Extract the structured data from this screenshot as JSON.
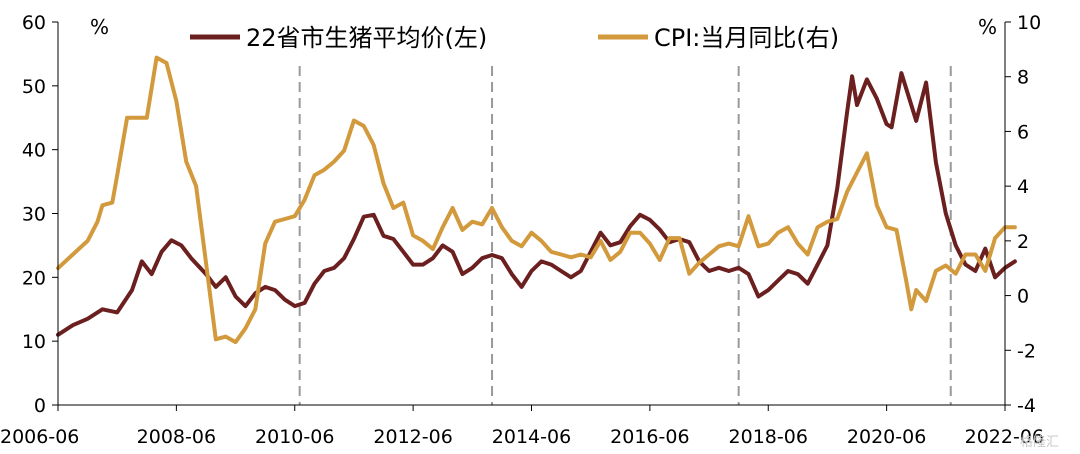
{
  "chart_data": {
    "type": "line",
    "x_labels": [
      "2006-06",
      "2008-06",
      "2010-06",
      "2012-06",
      "2014-06",
      "2016-06",
      "2018-06",
      "2020-06",
      "2022-06"
    ],
    "left_axis": {
      "unit": "%",
      "range": [
        0,
        60
      ],
      "ticks": [
        0,
        10,
        20,
        30,
        40,
        50,
        60
      ]
    },
    "right_axis": {
      "unit": "%",
      "range": [
        -4,
        10
      ],
      "ticks": [
        -4,
        -2,
        0,
        2,
        4,
        6,
        8,
        10
      ]
    },
    "vertical_markers": [
      "2010-07",
      "2013-10",
      "2017-12",
      "2021-07"
    ],
    "legend_placement": "top-center",
    "grid": false,
    "series": [
      {
        "name": "22省市生猪平均价(左)",
        "axis": "left",
        "color": "#6b1f1f",
        "points": [
          [
            "2006-06",
            11.0
          ],
          [
            "2006-09",
            12.5
          ],
          [
            "2006-12",
            13.5
          ],
          [
            "2007-03",
            15.0
          ],
          [
            "2007-06",
            14.5
          ],
          [
            "2007-09",
            18.0
          ],
          [
            "2007-11",
            22.5
          ],
          [
            "2008-01",
            20.5
          ],
          [
            "2008-03",
            24.0
          ],
          [
            "2008-05",
            25.8
          ],
          [
            "2008-07",
            25.0
          ],
          [
            "2008-09",
            23.0
          ],
          [
            "2008-12",
            20.5
          ],
          [
            "2009-02",
            18.5
          ],
          [
            "2009-04",
            20.0
          ],
          [
            "2009-06",
            17.0
          ],
          [
            "2009-08",
            15.5
          ],
          [
            "2009-10",
            17.5
          ],
          [
            "2009-12",
            18.5
          ],
          [
            "2010-02",
            18.0
          ],
          [
            "2010-04",
            16.5
          ],
          [
            "2010-06",
            15.5
          ],
          [
            "2010-08",
            16.0
          ],
          [
            "2010-10",
            19.0
          ],
          [
            "2010-12",
            21.0
          ],
          [
            "2011-02",
            21.5
          ],
          [
            "2011-04",
            23.0
          ],
          [
            "2011-06",
            26.0
          ],
          [
            "2011-08",
            29.5
          ],
          [
            "2011-10",
            29.8
          ],
          [
            "2011-12",
            26.5
          ],
          [
            "2012-02",
            26.0
          ],
          [
            "2012-04",
            24.0
          ],
          [
            "2012-06",
            22.0
          ],
          [
            "2012-08",
            22.0
          ],
          [
            "2012-10",
            23.0
          ],
          [
            "2012-12",
            25.0
          ],
          [
            "2013-02",
            24.0
          ],
          [
            "2013-04",
            20.5
          ],
          [
            "2013-06",
            21.5
          ],
          [
            "2013-08",
            23.0
          ],
          [
            "2013-10",
            23.5
          ],
          [
            "2013-12",
            23.0
          ],
          [
            "2014-02",
            20.5
          ],
          [
            "2014-04",
            18.5
          ],
          [
            "2014-06",
            21.0
          ],
          [
            "2014-08",
            22.5
          ],
          [
            "2014-10",
            22.0
          ],
          [
            "2014-12",
            21.0
          ],
          [
            "2015-02",
            20.0
          ],
          [
            "2015-04",
            21.0
          ],
          [
            "2015-06",
            24.0
          ],
          [
            "2015-08",
            27.0
          ],
          [
            "2015-10",
            25.0
          ],
          [
            "2015-12",
            25.5
          ],
          [
            "2016-02",
            28.0
          ],
          [
            "2016-04",
            29.8
          ],
          [
            "2016-06",
            29.0
          ],
          [
            "2016-08",
            27.5
          ],
          [
            "2016-10",
            25.5
          ],
          [
            "2016-12",
            26.0
          ],
          [
            "2017-02",
            25.5
          ],
          [
            "2017-04",
            22.5
          ],
          [
            "2017-06",
            21.0
          ],
          [
            "2017-08",
            21.5
          ],
          [
            "2017-10",
            21.0
          ],
          [
            "2017-12",
            21.5
          ],
          [
            "2018-02",
            20.5
          ],
          [
            "2018-04",
            17.0
          ],
          [
            "2018-06",
            18.0
          ],
          [
            "2018-08",
            19.5
          ],
          [
            "2018-10",
            21.0
          ],
          [
            "2018-12",
            20.5
          ],
          [
            "2019-02",
            19.0
          ],
          [
            "2019-04",
            22.0
          ],
          [
            "2019-06",
            25.0
          ],
          [
            "2019-08",
            34.0
          ],
          [
            "2019-10",
            46.0
          ],
          [
            "2019-11",
            51.5
          ],
          [
            "2019-12",
            47.0
          ],
          [
            "2020-02",
            51.0
          ],
          [
            "2020-04",
            48.0
          ],
          [
            "2020-06",
            44.0
          ],
          [
            "2020-07",
            43.5
          ],
          [
            "2020-09",
            52.0
          ],
          [
            "2020-11",
            47.0
          ],
          [
            "2020-12",
            44.5
          ],
          [
            "2021-02",
            50.5
          ],
          [
            "2021-04",
            38.0
          ],
          [
            "2021-06",
            30.0
          ],
          [
            "2021-08",
            25.0
          ],
          [
            "2021-10",
            22.0
          ],
          [
            "2021-12",
            21.0
          ],
          [
            "2022-02",
            24.5
          ],
          [
            "2022-04",
            20.0
          ],
          [
            "2022-06",
            21.5
          ],
          [
            "2022-08",
            22.5
          ]
        ]
      },
      {
        "name": "CPI:当月同比(右)",
        "axis": "right",
        "color": "#d29a3c",
        "points": [
          [
            "2006-06",
            1.0
          ],
          [
            "2006-09",
            1.5
          ],
          [
            "2006-12",
            2.0
          ],
          [
            "2007-02",
            2.7
          ],
          [
            "2007-03",
            3.3
          ],
          [
            "2007-05",
            3.4
          ],
          [
            "2007-06",
            4.4
          ],
          [
            "2007-08",
            6.5
          ],
          [
            "2007-10",
            6.5
          ],
          [
            "2007-12",
            6.5
          ],
          [
            "2008-02",
            8.7
          ],
          [
            "2008-04",
            8.5
          ],
          [
            "2008-06",
            7.1
          ],
          [
            "2008-08",
            4.9
          ],
          [
            "2008-10",
            4.0
          ],
          [
            "2008-12",
            1.2
          ],
          [
            "2009-02",
            -1.6
          ],
          [
            "2009-04",
            -1.5
          ],
          [
            "2009-06",
            -1.7
          ],
          [
            "2009-08",
            -1.2
          ],
          [
            "2009-10",
            -0.5
          ],
          [
            "2009-12",
            1.9
          ],
          [
            "2010-02",
            2.7
          ],
          [
            "2010-04",
            2.8
          ],
          [
            "2010-06",
            2.9
          ],
          [
            "2010-08",
            3.5
          ],
          [
            "2010-10",
            4.4
          ],
          [
            "2010-12",
            4.6
          ],
          [
            "2011-02",
            4.9
          ],
          [
            "2011-04",
            5.3
          ],
          [
            "2011-06",
            6.4
          ],
          [
            "2011-08",
            6.2
          ],
          [
            "2011-10",
            5.5
          ],
          [
            "2011-12",
            4.1
          ],
          [
            "2012-02",
            3.2
          ],
          [
            "2012-04",
            3.4
          ],
          [
            "2012-06",
            2.2
          ],
          [
            "2012-08",
            2.0
          ],
          [
            "2012-10",
            1.7
          ],
          [
            "2012-12",
            2.5
          ],
          [
            "2013-02",
            3.2
          ],
          [
            "2013-04",
            2.4
          ],
          [
            "2013-06",
            2.7
          ],
          [
            "2013-08",
            2.6
          ],
          [
            "2013-10",
            3.2
          ],
          [
            "2013-12",
            2.5
          ],
          [
            "2014-02",
            2.0
          ],
          [
            "2014-04",
            1.8
          ],
          [
            "2014-06",
            2.3
          ],
          [
            "2014-08",
            2.0
          ],
          [
            "2014-10",
            1.6
          ],
          [
            "2014-12",
            1.5
          ],
          [
            "2015-02",
            1.4
          ],
          [
            "2015-04",
            1.5
          ],
          [
            "2015-06",
            1.4
          ],
          [
            "2015-08",
            2.0
          ],
          [
            "2015-10",
            1.3
          ],
          [
            "2015-12",
            1.6
          ],
          [
            "2016-02",
            2.3
          ],
          [
            "2016-04",
            2.3
          ],
          [
            "2016-06",
            1.9
          ],
          [
            "2016-08",
            1.3
          ],
          [
            "2016-10",
            2.1
          ],
          [
            "2016-12",
            2.1
          ],
          [
            "2017-02",
            0.8
          ],
          [
            "2017-04",
            1.2
          ],
          [
            "2017-06",
            1.5
          ],
          [
            "2017-08",
            1.8
          ],
          [
            "2017-10",
            1.9
          ],
          [
            "2017-12",
            1.8
          ],
          [
            "2018-02",
            2.9
          ],
          [
            "2018-04",
            1.8
          ],
          [
            "2018-06",
            1.9
          ],
          [
            "2018-08",
            2.3
          ],
          [
            "2018-10",
            2.5
          ],
          [
            "2018-12",
            1.9
          ],
          [
            "2019-02",
            1.5
          ],
          [
            "2019-04",
            2.5
          ],
          [
            "2019-06",
            2.7
          ],
          [
            "2019-08",
            2.8
          ],
          [
            "2019-10",
            3.8
          ],
          [
            "2019-12",
            4.5
          ],
          [
            "2020-02",
            5.2
          ],
          [
            "2020-04",
            3.3
          ],
          [
            "2020-06",
            2.5
          ],
          [
            "2020-08",
            2.4
          ],
          [
            "2020-10",
            0.5
          ],
          [
            "2020-11",
            -0.5
          ],
          [
            "2020-12",
            0.2
          ],
          [
            "2021-02",
            -0.2
          ],
          [
            "2021-04",
            0.9
          ],
          [
            "2021-06",
            1.1
          ],
          [
            "2021-08",
            0.8
          ],
          [
            "2021-10",
            1.5
          ],
          [
            "2021-12",
            1.5
          ],
          [
            "2022-02",
            0.9
          ],
          [
            "2022-04",
            2.1
          ],
          [
            "2022-06",
            2.5
          ],
          [
            "2022-08",
            2.5
          ]
        ]
      }
    ]
  },
  "watermark": "格隆汇"
}
